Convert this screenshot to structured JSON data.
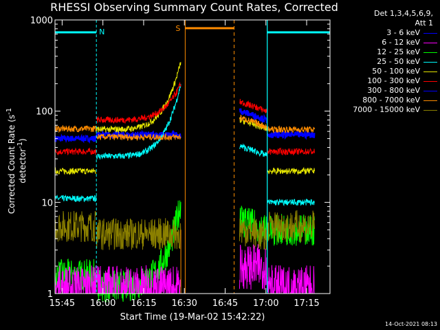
{
  "chart_data": {
    "type": "line",
    "title": "RHESSI Observing Summary Count Rates, Corrected",
    "xlabel": "Start Time (19-Mar-02 15:42:22)",
    "ylabel_main": "Corrected Count Rate (s",
    "ylabel_sup1": "-1",
    "ylabel_mid": " detector",
    "ylabel_sup2": "-1",
    "ylabel_end": ")",
    "yscale": "log",
    "ylim": [
      1,
      1000
    ],
    "xlim_minutes": [
      942.37,
      1043.6
    ],
    "xticks": [
      {
        "t": 945,
        "label": "15:45"
      },
      {
        "t": 960,
        "label": "16:00"
      },
      {
        "t": 975,
        "label": "16:15"
      },
      {
        "t": 990,
        "label": "16:30"
      },
      {
        "t": 1005,
        "label": "16:45"
      },
      {
        "t": 1020,
        "label": "17:00"
      },
      {
        "t": 1035,
        "label": "17:15"
      }
    ],
    "yticks": [
      {
        "v": 1,
        "label": "1"
      },
      {
        "v": 10,
        "label": "10"
      },
      {
        "v": 100,
        "label": "100"
      },
      {
        "v": 1000,
        "label": "1000"
      }
    ],
    "legend_header": "Det 1,3,4,5,6,9,",
    "legend_att": "Att 1",
    "series": [
      {
        "name": "3 - 6 keV",
        "color": "#0000ff"
      },
      {
        "name": "6 - 12 keV",
        "color": "#ff00ff"
      },
      {
        "name": "12 - 25 keV",
        "color": "#00ff00"
      },
      {
        "name": "25 - 50 keV",
        "color": "#00ffff"
      },
      {
        "name": "50 - 100 keV",
        "color": "#e6e600"
      },
      {
        "name": "100 - 300 keV",
        "color": "#ff0000"
      },
      {
        "name": "300 - 800 keV",
        "color": "#0000ff"
      },
      {
        "name": "800 - 7000 keV",
        "color": "#ff8c00"
      },
      {
        "name": "7000 - 15000 keV",
        "color": "#8b8000"
      }
    ],
    "segments": [
      {
        "t0": 942.4,
        "t1": 957.6,
        "levels": {
          "3-6": 50,
          "12-25": 1.6,
          "25-50": 11,
          "50-100": 22,
          "100-300": 36,
          "800-7000": 64,
          "7000-15000": 5.5
        }
      },
      {
        "t0": 957.6,
        "t1": 988.7,
        "levels": {
          "3-6": 55,
          "12-25": 1.2,
          "25-50": 32,
          "50-100": 63,
          "100-300": 80,
          "800-7000": 52,
          "7000-15000": 4.5
        },
        "rise_end": {
          "25-50": 200,
          "50-100": 350,
          "100-300": 200,
          "12-25": 10,
          "3-6": 55
        }
      },
      {
        "t0": 1010.3,
        "t1": 1020.5,
        "levels": {
          "3-6": 88,
          "12-25": 5.5,
          "25-50": 36,
          "50-100": 70,
          "100-300": 110,
          "800-7000": 74,
          "7000-15000": 4.5
        }
      },
      {
        "t0": 1020.5,
        "t1": 1037.9,
        "levels": {
          "3-6": 55,
          "12-25": 5,
          "25-50": 10,
          "50-100": 22,
          "100-300": 36,
          "800-7000": 63,
          "7000-15000": 5.5
        }
      }
    ],
    "night_periods": [
      {
        "t0": 942.4,
        "t1": 957.6,
        "label": "N"
      },
      {
        "t0": 1020.5,
        "t1": 1043.6,
        "label": ""
      }
    ],
    "saa_period": {
      "t0": 990.3,
      "t1": 1008.3,
      "label": "S"
    },
    "timestamp": "14-Oct-2021 08:13"
  },
  "colors": {
    "night": "#00ffff",
    "saa": "#ff8c00",
    "axis": "#ffffff"
  }
}
